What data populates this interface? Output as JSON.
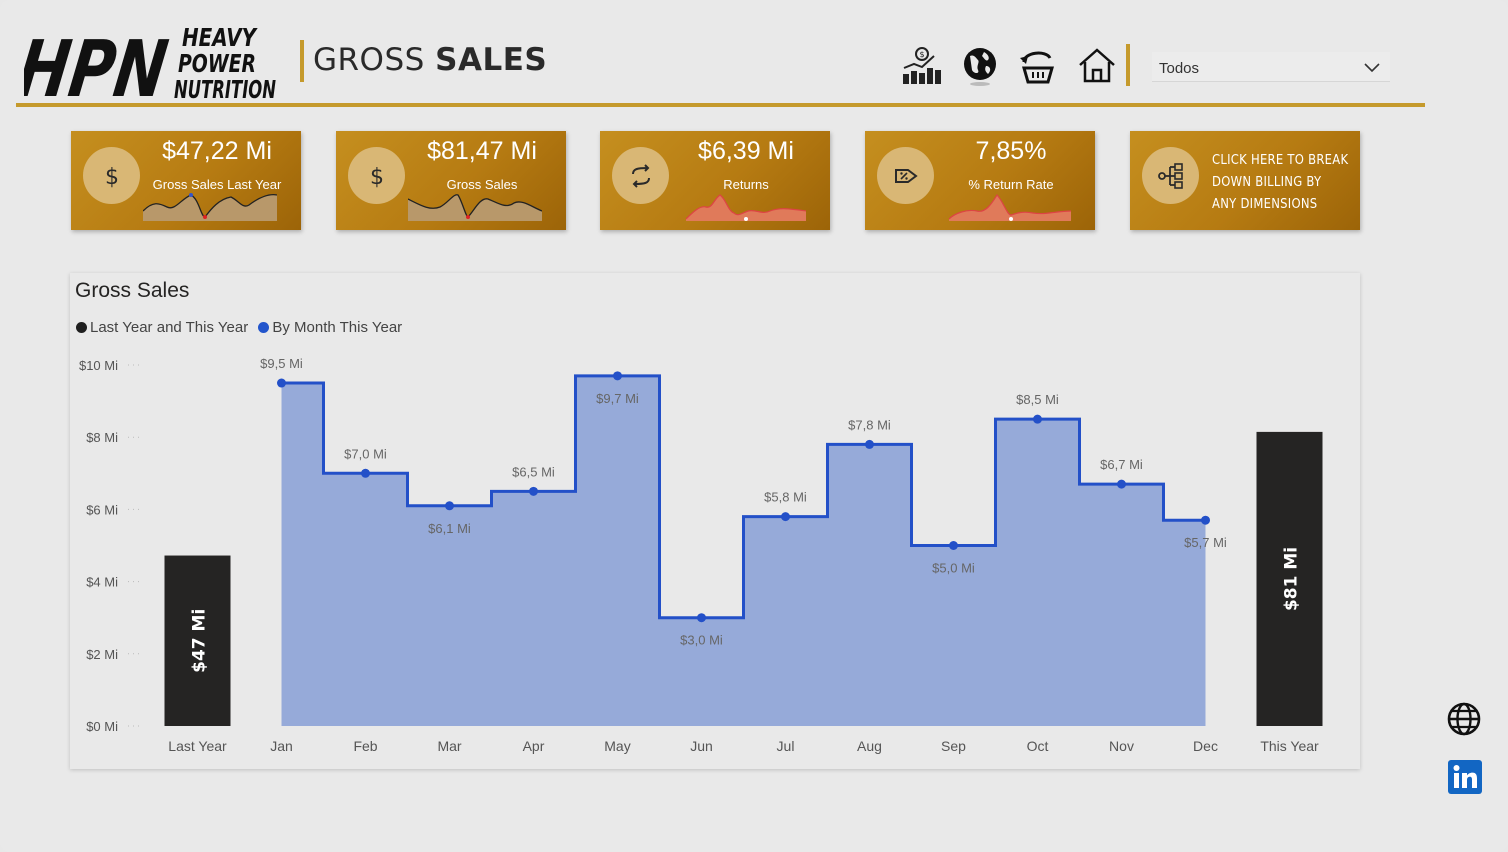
{
  "header": {
    "logo_text_main": "HPN",
    "logo_text_lines": [
      "HEAVY",
      "POWER",
      "NUTRITION"
    ],
    "title_light": "GROSS ",
    "title_bold": "SALES",
    "filter": {
      "selected": "Todos"
    },
    "nav_icons": [
      "sales-chart-icon",
      "globe-icon",
      "returns-basket-icon",
      "home-icon"
    ]
  },
  "kpis": [
    {
      "value": "$47,22 Mi",
      "label": "Gross Sales Last Year",
      "icon": "dollar-icon"
    },
    {
      "value": "$81,47 Mi",
      "label": "Gross Sales",
      "icon": "dollar-icon"
    },
    {
      "value": "$6,39 Mi",
      "label": "Returns",
      "icon": "return-arrows-icon"
    },
    {
      "value": "7,85%",
      "label": "% Return Rate",
      "icon": "discount-tag-icon"
    }
  ],
  "cta": {
    "text": "CLICK HERE TO BREAK DOWN BILLING BY ANY DIMENSIONS",
    "icon": "decomposition-tree-icon"
  },
  "chart_data": {
    "type": "bar",
    "title": "Gross Sales",
    "legend": [
      "Last Year and This Year",
      "By Month This Year"
    ],
    "legend_colors": [
      "#1f1f1f",
      "#2255cc"
    ],
    "series_colors": {
      "totals": "#252423",
      "monthly_line": "#2350c8",
      "monthly_fill": "#96aad9"
    },
    "ylim": [
      0,
      10
    ],
    "y_ticks": [
      "$0 Mi",
      "$2 Mi",
      "$4 Mi",
      "$6 Mi",
      "$8 Mi",
      "$10 Mi"
    ],
    "categories": [
      "Last Year",
      "Jan",
      "Feb",
      "Mar",
      "Apr",
      "May",
      "Jun",
      "Jul",
      "Aug",
      "Sep",
      "Oct",
      "Nov",
      "Dec",
      "This Year"
    ],
    "totals": [
      {
        "category": "Last Year",
        "value": 47.22,
        "label": "$47 Mi"
      },
      {
        "category": "This Year",
        "value": 81.47,
        "label": "$81 Mi"
      }
    ],
    "monthly": [
      {
        "month": "Jan",
        "value": 9.5,
        "label": "$9,5 Mi",
        "label_pos": "above"
      },
      {
        "month": "Feb",
        "value": 7.0,
        "label": "$7,0 Mi",
        "label_pos": "above"
      },
      {
        "month": "Mar",
        "value": 6.1,
        "label": "$6,1 Mi",
        "label_pos": "below"
      },
      {
        "month": "Apr",
        "value": 6.5,
        "label": "$6,5 Mi",
        "label_pos": "above"
      },
      {
        "month": "May",
        "value": 9.7,
        "label": "$9,7 Mi",
        "label_pos": "below"
      },
      {
        "month": "Jun",
        "value": 3.0,
        "label": "$3,0 Mi",
        "label_pos": "below"
      },
      {
        "month": "Jul",
        "value": 5.8,
        "label": "$5,8 Mi",
        "label_pos": "above"
      },
      {
        "month": "Aug",
        "value": 7.8,
        "label": "$7,8 Mi",
        "label_pos": "above"
      },
      {
        "month": "Sep",
        "value": 5.0,
        "label": "$5,0 Mi",
        "label_pos": "below"
      },
      {
        "month": "Oct",
        "value": 8.5,
        "label": "$8,5 Mi",
        "label_pos": "above"
      },
      {
        "month": "Nov",
        "value": 6.7,
        "label": "$6,7 Mi",
        "label_pos": "above"
      },
      {
        "month": "Dec",
        "value": 5.7,
        "label": "$5,7 Mi",
        "label_pos": "below"
      }
    ]
  },
  "side_links": [
    "web-globe-icon",
    "linkedin-icon"
  ]
}
